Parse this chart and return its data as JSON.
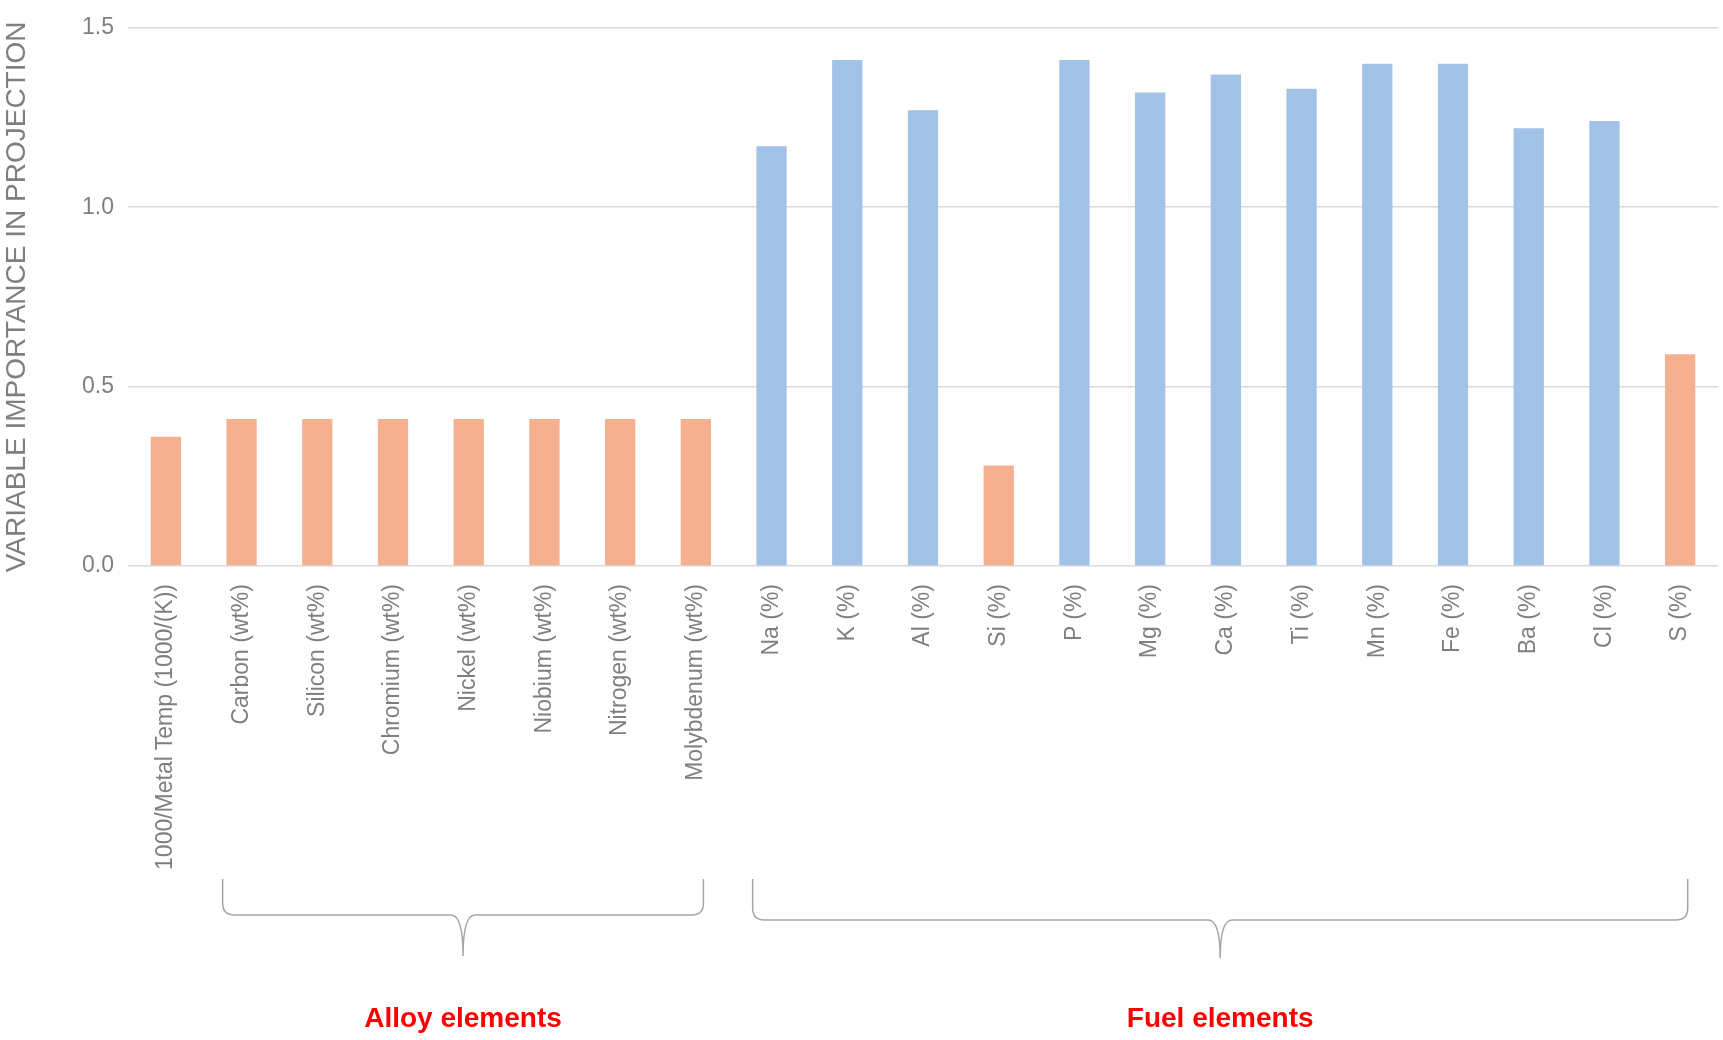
{
  "chart_data": {
    "type": "bar",
    "ylabel": "VARIABLE IMPORTANCE IN PROJECTION",
    "categories": [
      "1000/Metal Temp (1000/(K))",
      "Carbon (wt%)",
      "Silicon (wt%)",
      "Chromium (wt%)",
      "Nickel (wt%)",
      "Niobium (wt%)",
      "Nitrogen (wt%)",
      "Molybdenum (wt%)",
      "Na (%)",
      "K (%)",
      "Al (%)",
      "Si (%)",
      "P (%)",
      "Mg (%)",
      "Ca (%)",
      "Ti (%)",
      "Mn (%)",
      "Fe (%)",
      "Ba (%)",
      "Cl (%)",
      "S (%)"
    ],
    "values": [
      0.36,
      0.41,
      0.41,
      0.41,
      0.41,
      0.41,
      0.41,
      0.41,
      1.17,
      1.41,
      1.27,
      0.28,
      1.41,
      1.32,
      1.37,
      1.33,
      1.4,
      1.4,
      1.22,
      1.24,
      0.59
    ],
    "colors": [
      "#f5b08f",
      "#f5b08f",
      "#f5b08f",
      "#f5b08f",
      "#f5b08f",
      "#f5b08f",
      "#f5b08f",
      "#f5b08f",
      "#a3c2e8",
      "#a3c2e8",
      "#a3c2e8",
      "#f5b08f",
      "#a3c2e8",
      "#a3c2e8",
      "#a3c2e8",
      "#a3c2e8",
      "#a3c2e8",
      "#a3c2e8",
      "#a3c2e8",
      "#a3c2e8",
      "#f5b08f"
    ],
    "ylim": [
      0,
      1.5
    ],
    "yticks": [
      {
        "value": 0,
        "label": "0.0"
      },
      {
        "value": 0.5,
        "label": "0.5"
      },
      {
        "value": 1,
        "label": "1.0"
      },
      {
        "value": 1.5,
        "label": "1.5"
      }
    ],
    "grid": "y",
    "annotations": [
      "Alloy elements",
      "Fuel elements"
    ]
  }
}
